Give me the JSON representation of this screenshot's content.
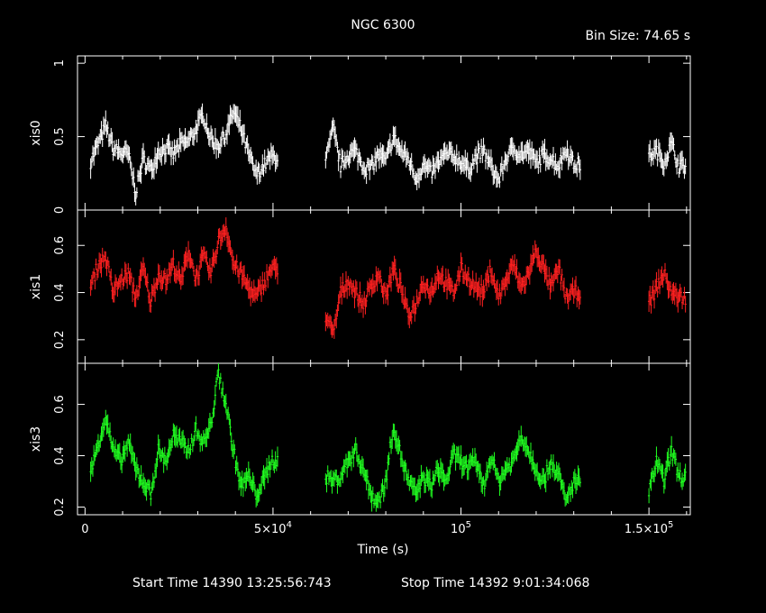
{
  "chart_data": {
    "type": "line",
    "title": "NGC 6300",
    "bin_size": "Bin Size: 74.65 s",
    "xlabel": "Time (s)",
    "xlim": [
      -2000,
      161000
    ],
    "x_ticks": [
      {
        "value": 0,
        "label": "0"
      },
      {
        "value": 50000,
        "label": "5×10",
        "exp": "4"
      },
      {
        "value": 100000,
        "label": "10",
        "exp": "5"
      },
      {
        "value": 150000,
        "label": "1.5×10",
        "exp": "5"
      }
    ],
    "footer": {
      "start": "Start Time 14390 13:25:56:743",
      "stop": "Stop Time 14392  9:01:34:068"
    },
    "series": [
      {
        "name": "xis0",
        "color": "#ffffff",
        "ylim": [
          0,
          1.05
        ],
        "yticks": [
          {
            "value": 0,
            "label": "0"
          },
          {
            "value": 0.5,
            "label": "0.5"
          },
          {
            "value": 1,
            "label": "1"
          }
        ],
        "segments": [
          {
            "x": [
              1500,
              3500,
              5500,
              7500,
              9500,
              11500,
              13500,
              15500,
              17500,
              19500,
              21500,
              23500,
              25500,
              27500,
              29500,
              31500,
              33500,
              35500,
              37500,
              39500,
              41500,
              43500,
              45500,
              47500,
              49500
            ],
            "y": [
              0.33,
              0.45,
              0.57,
              0.42,
              0.39,
              0.38,
              0.12,
              0.35,
              0.27,
              0.4,
              0.42,
              0.38,
              0.45,
              0.47,
              0.55,
              0.65,
              0.48,
              0.44,
              0.52,
              0.67,
              0.55,
              0.38,
              0.24,
              0.3,
              0.36
            ]
          },
          {
            "x": [
              64000,
              66000,
              68000,
              70000,
              72000,
              74000,
              76000,
              78000,
              80000,
              82000,
              84000,
              86000,
              88000,
              90000,
              92000,
              94000,
              96000,
              98000,
              100000,
              102000,
              104000,
              106000,
              108000,
              110000,
              112000,
              114000,
              116000,
              118000,
              120000,
              122000,
              124000,
              126000,
              128000,
              130000
            ],
            "y": [
              0.33,
              0.55,
              0.3,
              0.38,
              0.4,
              0.3,
              0.28,
              0.38,
              0.33,
              0.5,
              0.4,
              0.35,
              0.22,
              0.3,
              0.25,
              0.32,
              0.38,
              0.37,
              0.33,
              0.28,
              0.36,
              0.4,
              0.3,
              0.2,
              0.35,
              0.42,
              0.38,
              0.4,
              0.32,
              0.38,
              0.35,
              0.3,
              0.42,
              0.31
            ]
          },
          {
            "x": [
              150000,
              152000,
              154000,
              156000,
              158000
            ],
            "y": [
              0.37,
              0.4,
              0.33,
              0.45,
              0.3
            ]
          }
        ]
      },
      {
        "name": "xis1",
        "color": "#ff2020",
        "ylim": [
          0.1,
          0.75
        ],
        "yticks": [
          {
            "value": 0.2,
            "label": "0.2"
          },
          {
            "value": 0.4,
            "label": "0.4"
          },
          {
            "value": 0.6,
            "label": "0.6"
          }
        ],
        "segments": [
          {
            "x": [
              1500,
              3500,
              5500,
              7500,
              9500,
              11500,
              13500,
              15500,
              17500,
              19500,
              21500,
              23500,
              25500,
              27500,
              29500,
              31500,
              33500,
              35500,
              37500,
              39500,
              41500,
              43500,
              45500,
              47500,
              49500
            ],
            "y": [
              0.42,
              0.52,
              0.55,
              0.4,
              0.45,
              0.48,
              0.38,
              0.5,
              0.36,
              0.48,
              0.45,
              0.52,
              0.44,
              0.58,
              0.46,
              0.55,
              0.48,
              0.62,
              0.68,
              0.52,
              0.48,
              0.42,
              0.38,
              0.44,
              0.5
            ]
          },
          {
            "x": [
              64000,
              66000,
              68000,
              70000,
              72000,
              74000,
              76000,
              78000,
              80000,
              82000,
              84000,
              86000,
              88000,
              90000,
              92000,
              94000,
              96000,
              98000,
              100000,
              102000,
              104000,
              106000,
              108000,
              110000,
              112000,
              114000,
              116000,
              118000,
              120000,
              122000,
              124000,
              126000,
              128000,
              130000
            ],
            "y": [
              0.3,
              0.22,
              0.4,
              0.45,
              0.4,
              0.35,
              0.42,
              0.48,
              0.38,
              0.5,
              0.42,
              0.3,
              0.35,
              0.45,
              0.4,
              0.48,
              0.44,
              0.4,
              0.5,
              0.46,
              0.42,
              0.4,
              0.5,
              0.38,
              0.45,
              0.52,
              0.42,
              0.48,
              0.58,
              0.5,
              0.42,
              0.5,
              0.38,
              0.4
            ]
          },
          {
            "x": [
              150000,
              152000,
              154000,
              156000,
              158000
            ],
            "y": [
              0.35,
              0.42,
              0.48,
              0.4,
              0.38
            ]
          }
        ]
      },
      {
        "name": "xis3",
        "color": "#20ff20",
        "ylim": [
          0.17,
          0.76
        ],
        "yticks": [
          {
            "value": 0.2,
            "label": "0.2"
          },
          {
            "value": 0.4,
            "label": "0.4"
          },
          {
            "value": 0.6,
            "label": "0.6"
          }
        ],
        "segments": [
          {
            "x": [
              1500,
              3500,
              5500,
              7500,
              9500,
              11500,
              13500,
              15500,
              17500,
              19500,
              21500,
              23500,
              25500,
              27500,
              29500,
              31500,
              33500,
              35500,
              37500,
              39500,
              41500,
              43500,
              45500,
              47500,
              49500
            ],
            "y": [
              0.33,
              0.45,
              0.55,
              0.42,
              0.38,
              0.45,
              0.35,
              0.3,
              0.25,
              0.42,
              0.38,
              0.48,
              0.45,
              0.42,
              0.5,
              0.45,
              0.52,
              0.72,
              0.6,
              0.42,
              0.28,
              0.32,
              0.25,
              0.3,
              0.38
            ]
          },
          {
            "x": [
              64000,
              66000,
              68000,
              70000,
              72000,
              74000,
              76000,
              78000,
              80000,
              82000,
              84000,
              86000,
              88000,
              90000,
              92000,
              94000,
              96000,
              98000,
              100000,
              102000,
              104000,
              106000,
              108000,
              110000,
              112000,
              114000,
              116000,
              118000,
              120000,
              122000,
              124000,
              126000,
              128000,
              130000
            ],
            "y": [
              0.32,
              0.3,
              0.32,
              0.38,
              0.42,
              0.35,
              0.25,
              0.22,
              0.3,
              0.52,
              0.4,
              0.3,
              0.25,
              0.32,
              0.28,
              0.35,
              0.3,
              0.4,
              0.38,
              0.35,
              0.38,
              0.28,
              0.4,
              0.3,
              0.35,
              0.38,
              0.48,
              0.42,
              0.35,
              0.3,
              0.38,
              0.32,
              0.22,
              0.3
            ]
          },
          {
            "x": [
              150000,
              152000,
              154000,
              156000,
              158000
            ],
            "y": [
              0.25,
              0.38,
              0.3,
              0.42,
              0.32
            ]
          }
        ]
      }
    ]
  }
}
